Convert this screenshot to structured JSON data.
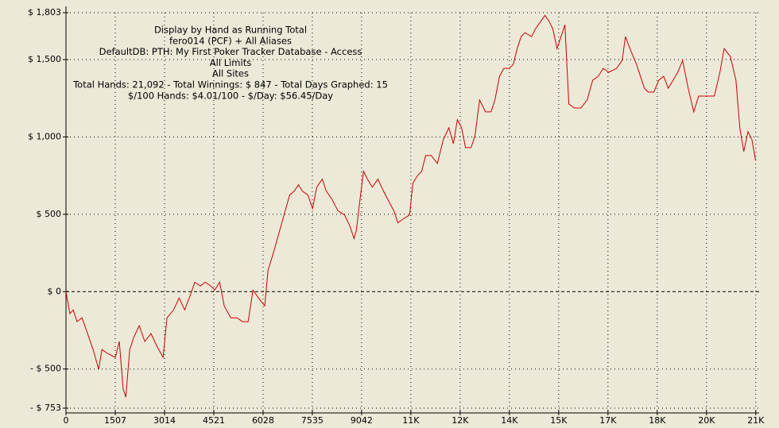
{
  "chart_data": {
    "type": "line",
    "title_lines": [
      "Display by Hand as Running Total",
      "fero014 (PCF) + All Aliases",
      "DefaultDB: PTH: My First Poker Tracker Database - Access",
      "All Limits",
      "All Sites",
      "Total Hands: 21,092 - Total Winnings: $ 847 - Total Days Graphed: 15",
      "$/100 Hands: $4.01/100 - $/Day: $56.45/Day"
    ],
    "x": [
      0,
      120,
      220,
      340,
      490,
      660,
      830,
      1000,
      1100,
      1270,
      1510,
      1630,
      1750,
      1830,
      1950,
      2070,
      2240,
      2410,
      2600,
      2770,
      2970,
      3090,
      3290,
      3460,
      3630,
      3770,
      3940,
      4110,
      4260,
      4430,
      4550,
      4700,
      4840,
      5040,
      5230,
      5400,
      5570,
      5720,
      5890,
      6080,
      6180,
      6330,
      6500,
      6670,
      6840,
      6980,
      7110,
      7230,
      7400,
      7540,
      7670,
      7840,
      7960,
      8130,
      8320,
      8520,
      8690,
      8810,
      8880,
      8980,
      9100,
      9220,
      9370,
      9540,
      9710,
      9900,
      10030,
      10150,
      10320,
      10510,
      10610,
      10760,
      10880,
      11000,
      11170,
      11360,
      11540,
      11710,
      11850,
      11970,
      12100,
      12220,
      12390,
      12510,
      12650,
      12830,
      13000,
      13120,
      13260,
      13390,
      13560,
      13680,
      13800,
      13920,
      14040,
      14240,
      14360,
      14530,
      14650,
      14770,
      14890,
      15020,
      15140,
      15260,
      15380,
      15550,
      15750,
      15940,
      16110,
      16280,
      16430,
      16600,
      16840,
      17010,
      17110,
      17250,
      17450,
      17570,
      17690,
      17810,
      17980,
      18130,
      18280,
      18420,
      18570,
      18710,
      18860,
      19030,
      19200,
      19350,
      19520,
      19690,
      19830,
      20000,
      20130,
      20320,
      20490,
      20610,
      20730,
      20860,
      20980,
      21092
    ],
    "series": [
      {
        "name": "Running Total",
        "color": "#cc0000",
        "values": [
          0,
          -143,
          -118,
          -194,
          -169,
          -271,
          -374,
          -502,
          -374,
          -399,
          -425,
          -322,
          -630,
          -681,
          -374,
          -297,
          -220,
          -322,
          -271,
          -348,
          -425,
          -169,
          -118,
          -41,
          -118,
          -41,
          61,
          36,
          61,
          36,
          10,
          61,
          -92,
          -169,
          -169,
          -194,
          -194,
          10,
          -41,
          -92,
          138,
          241,
          368,
          496,
          624,
          650,
          691,
          650,
          624,
          537,
          676,
          727,
          650,
          599,
          522,
          496,
          420,
          343,
          394,
          573,
          778,
          727,
          676,
          727,
          650,
          573,
          522,
          445,
          471,
          496,
          701,
          752,
          778,
          880,
          880,
          829,
          983,
          1059,
          957,
          1111,
          1059,
          931,
          931,
          1008,
          1239,
          1162,
          1162,
          1239,
          1392,
          1443,
          1443,
          1469,
          1571,
          1648,
          1674,
          1648,
          1699,
          1750,
          1786,
          1750,
          1699,
          1571,
          1648,
          1725,
          1213,
          1187,
          1187,
          1239,
          1367,
          1392,
          1443,
          1418,
          1443,
          1494,
          1648,
          1571,
          1469,
          1392,
          1315,
          1290,
          1290,
          1367,
          1392,
          1315,
          1367,
          1418,
          1494,
          1315,
          1162,
          1264,
          1264,
          1264,
          1264,
          1418,
          1571,
          1520,
          1367,
          1059,
          906,
          1034,
          983,
          847
        ]
      }
    ],
    "xlim": [
      0,
      21200
    ],
    "xticks": [
      0,
      1507,
      3014,
      4521,
      6028,
      7535,
      9042,
      {
        "value": 10549,
        "label": "11K"
      },
      {
        "value": 12056,
        "label": "12K"
      },
      {
        "value": 13563,
        "label": "14K"
      },
      {
        "value": 15070,
        "label": "15K"
      },
      {
        "value": 16577,
        "label": "17K"
      },
      {
        "value": 18084,
        "label": "18K"
      },
      {
        "value": 19591,
        "label": "20K"
      },
      {
        "value": 21098,
        "label": "21K"
      }
    ],
    "ylim": [
      -753,
      1803
    ],
    "yticks": [
      {
        "value": -753,
        "label": "- $ 753"
      },
      {
        "value": -500,
        "label": "- $ 500"
      },
      {
        "value": 0,
        "label": "$ 0"
      },
      {
        "value": 500,
        "label": "$ 500"
      },
      {
        "value": 1000,
        "label": "$ 1,000"
      },
      {
        "value": 1500,
        "label": "$ 1,500"
      },
      {
        "value": 1803,
        "label": "$ 1,803"
      }
    ],
    "grid": true
  }
}
